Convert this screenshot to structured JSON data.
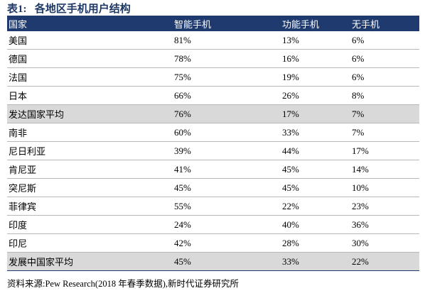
{
  "title": "表1:   各地区手机用户结构",
  "table": {
    "header": [
      "国家",
      "智能手机",
      "功能手机",
      "无手机"
    ],
    "rows": [
      [
        "美国",
        "81%",
        "13%",
        "6%"
      ],
      [
        "德国",
        "78%",
        "16%",
        "6%"
      ],
      [
        "法国",
        "75%",
        "19%",
        "6%"
      ],
      [
        "日本",
        "66%",
        "26%",
        "8%"
      ],
      [
        "发达国家平均",
        "76%",
        "17%",
        "7%"
      ],
      [
        "南非",
        "60%",
        "33%",
        "7%"
      ],
      [
        "尼日利亚",
        "39%",
        "44%",
        "17%"
      ],
      [
        "肯尼亚",
        "41%",
        "45%",
        "14%"
      ],
      [
        "突尼斯",
        "45%",
        "45%",
        "10%"
      ],
      [
        "菲律宾",
        "55%",
        "22%",
        "23%"
      ],
      [
        "印度",
        "24%",
        "40%",
        "36%"
      ],
      [
        "印尼",
        "42%",
        "28%",
        "30%"
      ],
      [
        "发展中国家平均",
        "45%",
        "33%",
        "22%"
      ]
    ],
    "highlight_rows": [
      4,
      12
    ]
  },
  "source": "资料来源:Pew Research(2018 年春季数据),新时代证券研究所"
}
